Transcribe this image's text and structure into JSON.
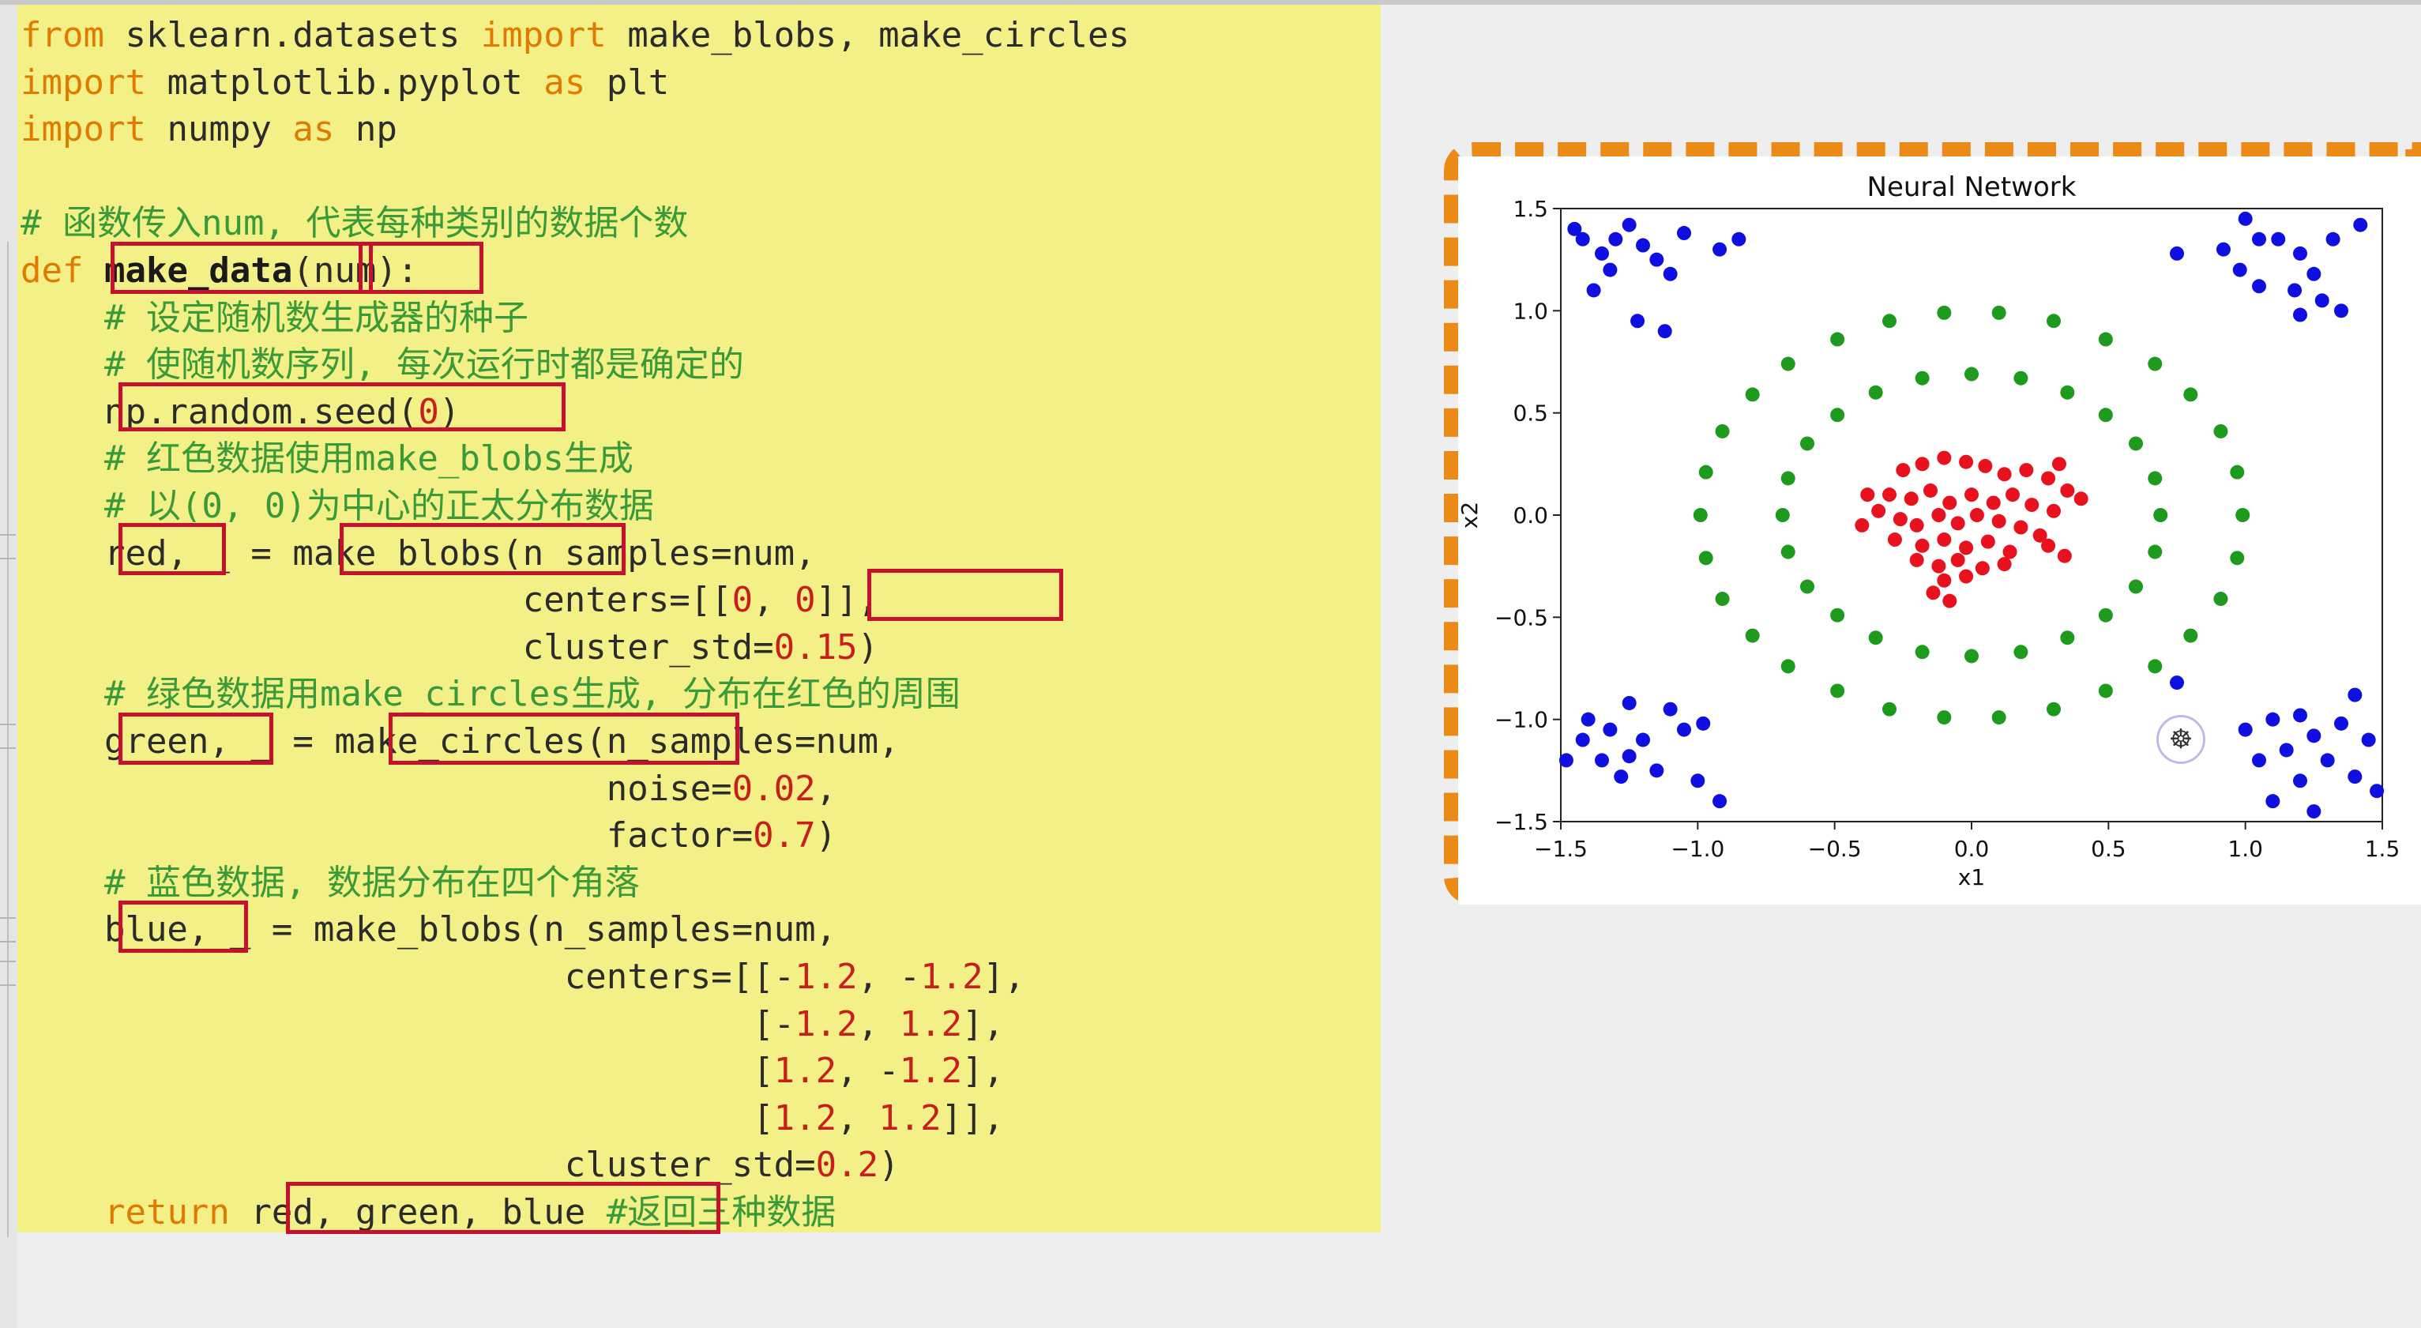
{
  "code": {
    "lines": [
      [
        {
          "t": "from",
          "c": "kw"
        },
        {
          "t": " sklearn.datasets "
        },
        {
          "t": "import",
          "c": "kw"
        },
        {
          "t": " make_blobs, make_circles"
        }
      ],
      [
        {
          "t": "import",
          "c": "kw"
        },
        {
          "t": " matplotlib.pyplot "
        },
        {
          "t": "as",
          "c": "kw"
        },
        {
          "t": " plt"
        }
      ],
      [
        {
          "t": "import",
          "c": "kw"
        },
        {
          "t": " numpy "
        },
        {
          "t": "as",
          "c": "kw"
        },
        {
          "t": " np"
        }
      ],
      [
        {
          "t": ""
        }
      ],
      [
        {
          "t": "# 函数传入num, 代表每种类别的数据个数",
          "c": "cm"
        }
      ],
      [
        {
          "t": "def",
          "c": "kw"
        },
        {
          "t": " "
        },
        {
          "t": "make_data",
          "c": "bold"
        },
        {
          "t": "("
        },
        {
          "t": "num"
        },
        {
          "t": "):"
        }
      ],
      [
        {
          "t": "    # 设定随机数生成器的种子",
          "c": "cm"
        }
      ],
      [
        {
          "t": "    # 使随机数序列, 每次运行时都是确定的",
          "c": "cm"
        }
      ],
      [
        {
          "t": "    np.random.seed("
        },
        {
          "t": "0",
          "c": "num"
        },
        {
          "t": ")"
        }
      ],
      [
        {
          "t": "    # 红色数据使用make_blobs生成",
          "c": "cm"
        }
      ],
      [
        {
          "t": "    # 以(0, 0)为中心的正太分布数据",
          "c": "cm"
        }
      ],
      [
        {
          "t": "    red, _ = make_blobs(n_samples=num,"
        }
      ],
      [
        {
          "t": "                        centers=[["
        },
        {
          "t": "0",
          "c": "num"
        },
        {
          "t": ", "
        },
        {
          "t": "0",
          "c": "num"
        },
        {
          "t": "]],"
        }
      ],
      [
        {
          "t": "                        cluster_std="
        },
        {
          "t": "0.15",
          "c": "num"
        },
        {
          "t": ")"
        }
      ],
      [
        {
          "t": "    # 绿色数据用make_circles生成, 分布在红色的周围",
          "c": "cm"
        }
      ],
      [
        {
          "t": "    green, _ = make_circles(n_samples=num,"
        }
      ],
      [
        {
          "t": "                            noise="
        },
        {
          "t": "0.02",
          "c": "num"
        },
        {
          "t": ","
        }
      ],
      [
        {
          "t": "                            factor="
        },
        {
          "t": "0.7",
          "c": "num"
        },
        {
          "t": ")"
        }
      ],
      [
        {
          "t": "    # 蓝色数据, 数据分布在四个角落",
          "c": "cm"
        }
      ],
      [
        {
          "t": "    blue, _ = make_blobs(n_samples=num,"
        }
      ],
      [
        {
          "t": "                          centers=[[-"
        },
        {
          "t": "1.2",
          "c": "num"
        },
        {
          "t": ", -"
        },
        {
          "t": "1.2",
          "c": "num"
        },
        {
          "t": "],"
        }
      ],
      [
        {
          "t": "                                   [-"
        },
        {
          "t": "1.2",
          "c": "num"
        },
        {
          "t": ", "
        },
        {
          "t": "1.2",
          "c": "num"
        },
        {
          "t": "],"
        }
      ],
      [
        {
          "t": "                                   ["
        },
        {
          "t": "1.2",
          "c": "num"
        },
        {
          "t": ", -"
        },
        {
          "t": "1.2",
          "c": "num"
        },
        {
          "t": "],"
        }
      ],
      [
        {
          "t": "                                   ["
        },
        {
          "t": "1.2",
          "c": "num"
        },
        {
          "t": ", "
        },
        {
          "t": "1.2",
          "c": "num"
        },
        {
          "t": "]],"
        }
      ],
      [
        {
          "t": "                          cluster_std="
        },
        {
          "t": "0.2",
          "c": "num"
        },
        {
          "t": ")"
        }
      ],
      [
        {
          "t": "    "
        },
        {
          "t": "return",
          "c": "kw"
        },
        {
          "t": " red, green, blue "
        },
        {
          "t": "#返回三种数据",
          "c": "cm"
        }
      ]
    ]
  },
  "chart_data": {
    "type": "scatter",
    "title": "Neural Network",
    "xlabel": "x1",
    "ylabel": "x2",
    "xlim": [
      -1.5,
      1.5
    ],
    "ylim": [
      -1.5,
      1.5
    ],
    "xticks": [
      "−1.5",
      "−1.0",
      "−0.5",
      "0.0",
      "0.5",
      "1.0",
      "1.5"
    ],
    "yticks": [
      "1.5",
      "1.0",
      "0.5",
      "0.0",
      "−0.5",
      "−1.0",
      "−1.5"
    ],
    "grid": false,
    "colors": {
      "red": "#e8121e",
      "green": "#1e9a1e",
      "blue": "#0f0fe0"
    },
    "series": [
      {
        "color": "red",
        "points": [
          [
            -0.25,
            0.22
          ],
          [
            -0.18,
            0.25
          ],
          [
            -0.1,
            0.28
          ],
          [
            -0.02,
            0.26
          ],
          [
            0.05,
            0.24
          ],
          [
            0.12,
            0.2
          ],
          [
            0.2,
            0.22
          ],
          [
            0.28,
            0.18
          ],
          [
            0.35,
            0.12
          ],
          [
            -0.3,
            0.1
          ],
          [
            -0.22,
            0.08
          ],
          [
            -0.15,
            0.12
          ],
          [
            -0.08,
            0.06
          ],
          [
            0.0,
            0.1
          ],
          [
            0.08,
            0.06
          ],
          [
            0.15,
            0.1
          ],
          [
            0.22,
            0.05
          ],
          [
            0.3,
            0.02
          ],
          [
            -0.38,
            0.1
          ],
          [
            -0.26,
            -0.02
          ],
          [
            -0.2,
            -0.05
          ],
          [
            -0.12,
            0.0
          ],
          [
            -0.05,
            -0.04
          ],
          [
            0.02,
            0.0
          ],
          [
            0.1,
            -0.03
          ],
          [
            0.18,
            -0.06
          ],
          [
            0.25,
            -0.1
          ],
          [
            -0.28,
            -0.12
          ],
          [
            -0.18,
            -0.15
          ],
          [
            -0.1,
            -0.12
          ],
          [
            -0.02,
            -0.16
          ],
          [
            0.06,
            -0.13
          ],
          [
            0.14,
            -0.18
          ],
          [
            -0.2,
            -0.22
          ],
          [
            -0.12,
            -0.25
          ],
          [
            -0.05,
            -0.22
          ],
          [
            0.04,
            -0.26
          ],
          [
            0.12,
            -0.24
          ],
          [
            -0.1,
            -0.32
          ],
          [
            -0.02,
            -0.3
          ],
          [
            -0.14,
            -0.38
          ],
          [
            -0.08,
            -0.42
          ],
          [
            0.28,
            -0.15
          ],
          [
            0.34,
            -0.2
          ],
          [
            -0.34,
            0.02
          ],
          [
            0.4,
            0.08
          ],
          [
            0.32,
            0.25
          ],
          [
            -0.4,
            -0.05
          ]
        ]
      },
      {
        "color": "green",
        "points": [
          [
            0.99,
            0.0
          ],
          [
            0.97,
            0.21
          ],
          [
            0.91,
            0.41
          ],
          [
            0.8,
            0.59
          ],
          [
            0.67,
            0.74
          ],
          [
            0.49,
            0.86
          ],
          [
            0.3,
            0.95
          ],
          [
            0.1,
            0.99
          ],
          [
            -0.1,
            0.99
          ],
          [
            -0.3,
            0.95
          ],
          [
            -0.49,
            0.86
          ],
          [
            -0.67,
            0.74
          ],
          [
            -0.8,
            0.59
          ],
          [
            -0.91,
            0.41
          ],
          [
            -0.97,
            0.21
          ],
          [
            -0.99,
            0.0
          ],
          [
            -0.97,
            -0.21
          ],
          [
            -0.91,
            -0.41
          ],
          [
            -0.8,
            -0.59
          ],
          [
            -0.67,
            -0.74
          ],
          [
            -0.49,
            -0.86
          ],
          [
            -0.3,
            -0.95
          ],
          [
            -0.1,
            -0.99
          ],
          [
            0.1,
            -0.99
          ],
          [
            0.3,
            -0.95
          ],
          [
            0.49,
            -0.86
          ],
          [
            0.67,
            -0.74
          ],
          [
            0.8,
            -0.59
          ],
          [
            0.91,
            -0.41
          ],
          [
            0.97,
            -0.21
          ],
          [
            0.69,
            0.0
          ],
          [
            0.67,
            0.18
          ],
          [
            0.6,
            0.35
          ],
          [
            0.49,
            0.49
          ],
          [
            0.35,
            0.6
          ],
          [
            0.18,
            0.67
          ],
          [
            0.0,
            0.69
          ],
          [
            -0.18,
            0.67
          ],
          [
            -0.35,
            0.6
          ],
          [
            -0.49,
            0.49
          ],
          [
            -0.6,
            0.35
          ],
          [
            -0.67,
            0.18
          ],
          [
            -0.69,
            0.0
          ],
          [
            -0.67,
            -0.18
          ],
          [
            -0.6,
            -0.35
          ],
          [
            -0.49,
            -0.49
          ],
          [
            -0.35,
            -0.6
          ],
          [
            -0.18,
            -0.67
          ],
          [
            0.0,
            -0.69
          ],
          [
            0.18,
            -0.67
          ],
          [
            0.35,
            -0.6
          ],
          [
            0.49,
            -0.49
          ],
          [
            0.6,
            -0.35
          ],
          [
            0.67,
            -0.18
          ]
        ]
      },
      {
        "color": "blue",
        "points": [
          [
            -1.42,
            1.35
          ],
          [
            -1.35,
            1.28
          ],
          [
            -1.3,
            1.35
          ],
          [
            -1.25,
            1.42
          ],
          [
            -1.38,
            1.1
          ],
          [
            -1.2,
            1.32
          ],
          [
            -1.15,
            1.25
          ],
          [
            -1.05,
            1.38
          ],
          [
            -1.1,
            1.18
          ],
          [
            -0.92,
            1.3
          ],
          [
            -0.85,
            1.35
          ],
          [
            -1.22,
            0.95
          ],
          [
            -1.45,
            1.4
          ],
          [
            -1.32,
            1.2
          ],
          [
            -1.12,
            0.9
          ],
          [
            -1.4,
            -1.0
          ],
          [
            -1.32,
            -1.05
          ],
          [
            -1.25,
            -0.92
          ],
          [
            -1.2,
            -1.1
          ],
          [
            -1.1,
            -0.95
          ],
          [
            -1.05,
            -1.05
          ],
          [
            -1.35,
            -1.2
          ],
          [
            -1.25,
            -1.18
          ],
          [
            -1.15,
            -1.25
          ],
          [
            -0.98,
            -1.02
          ],
          [
            -1.0,
            -1.3
          ],
          [
            -0.92,
            -1.4
          ],
          [
            -1.48,
            -1.2
          ],
          [
            -1.28,
            -1.28
          ],
          [
            -1.42,
            -1.1
          ],
          [
            0.75,
            1.28
          ],
          [
            0.92,
            1.3
          ],
          [
            1.0,
            1.45
          ],
          [
            1.05,
            1.35
          ],
          [
            0.98,
            1.2
          ],
          [
            1.12,
            1.35
          ],
          [
            1.2,
            1.28
          ],
          [
            1.18,
            1.1
          ],
          [
            1.25,
            1.18
          ],
          [
            1.32,
            1.35
          ],
          [
            1.42,
            1.42
          ],
          [
            1.28,
            1.05
          ],
          [
            1.05,
            1.12
          ],
          [
            1.2,
            0.98
          ],
          [
            1.35,
            1.0
          ],
          [
            1.0,
            -1.05
          ],
          [
            1.1,
            -1.0
          ],
          [
            1.2,
            -0.98
          ],
          [
            1.25,
            -1.08
          ],
          [
            1.35,
            -1.02
          ],
          [
            1.45,
            -1.1
          ],
          [
            1.3,
            -1.2
          ],
          [
            1.15,
            -1.15
          ],
          [
            1.05,
            -1.2
          ],
          [
            1.2,
            -1.3
          ],
          [
            1.4,
            -1.28
          ],
          [
            1.48,
            -1.35
          ],
          [
            1.25,
            -1.45
          ],
          [
            1.1,
            -1.4
          ],
          [
            0.75,
            -0.82
          ],
          [
            1.4,
            -0.88
          ]
        ]
      }
    ]
  },
  "watermark": {
    "icon": "brand-logo-icon",
    "glyph": "☸"
  }
}
